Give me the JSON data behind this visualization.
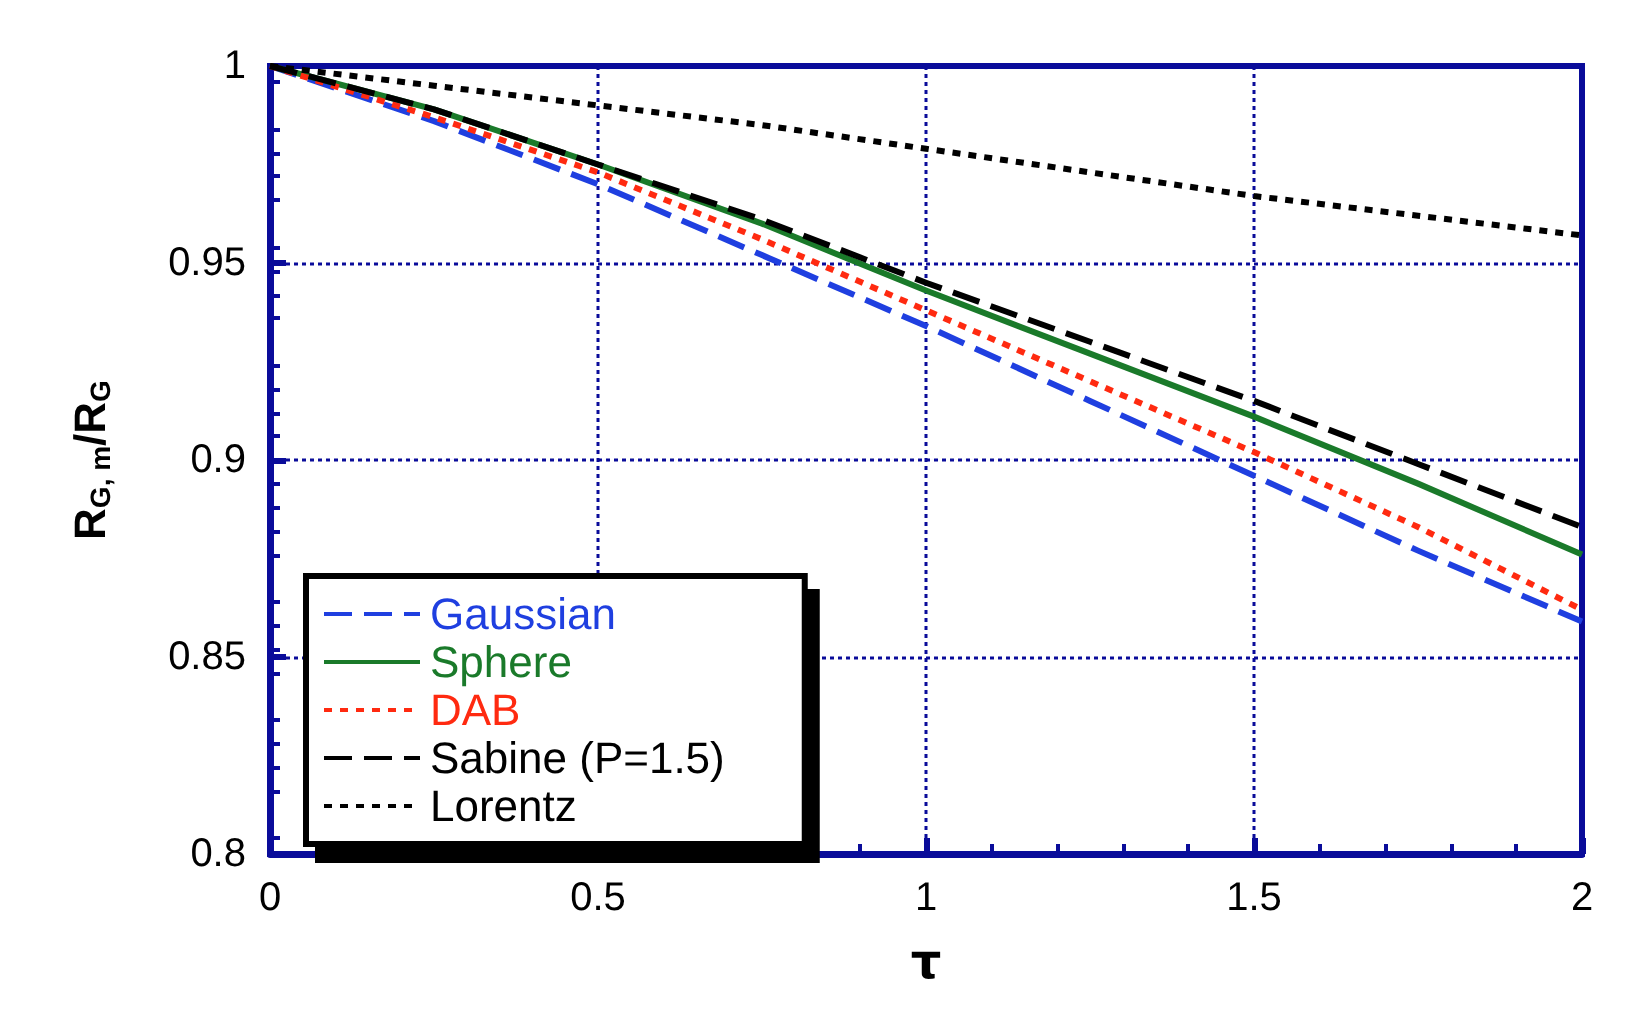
{
  "chart_data": {
    "type": "line",
    "xlabel": "τ",
    "ylabel": "R$_{G, m}$/R$_{G}$",
    "x": [
      0,
      0.25,
      0.5,
      0.75,
      1,
      1.25,
      1.5,
      1.75,
      2
    ],
    "series": [
      {
        "name": "Gaussian",
        "color": "#1f3fe0",
        "line_style": "dashed",
        "values": [
          1,
          0.986,
          0.97,
          0.952,
          0.934,
          0.915,
          0.896,
          0.877,
          0.859
        ]
      },
      {
        "name": "Sphere",
        "color": "#1a7a2a",
        "line_style": "solid",
        "values": [
          1,
          0.989,
          0.975,
          0.96,
          0.943,
          0.927,
          0.911,
          0.894,
          0.876
        ]
      },
      {
        "name": "DAB",
        "color": "#ff2a10",
        "line_style": "dotted",
        "values": [
          1,
          0.987,
          0.973,
          0.956,
          0.938,
          0.92,
          0.902,
          0.883,
          0.862
        ]
      },
      {
        "name": "Sabine (P=1.5)",
        "color": "#000000",
        "line_style": "dashed",
        "values": [
          1,
          0.989,
          0.975,
          0.961,
          0.945,
          0.93,
          0.915,
          0.899,
          0.883
        ]
      },
      {
        "name": "Lorentz",
        "color": "#000000",
        "line_style": "dotted",
        "values": [
          1,
          0.995,
          0.99,
          0.985,
          0.979,
          0.973,
          0.967,
          0.962,
          0.957
        ]
      }
    ],
    "xlim": [
      0,
      2
    ],
    "xticks": [
      0,
      0.5,
      1,
      1.5,
      2
    ],
    "ylim": [
      0.8,
      1
    ],
    "yticks": [
      0.8,
      0.85,
      0.9,
      0.95,
      1
    ],
    "grid": true,
    "legend": "bottom left",
    "marker": "none"
  }
}
